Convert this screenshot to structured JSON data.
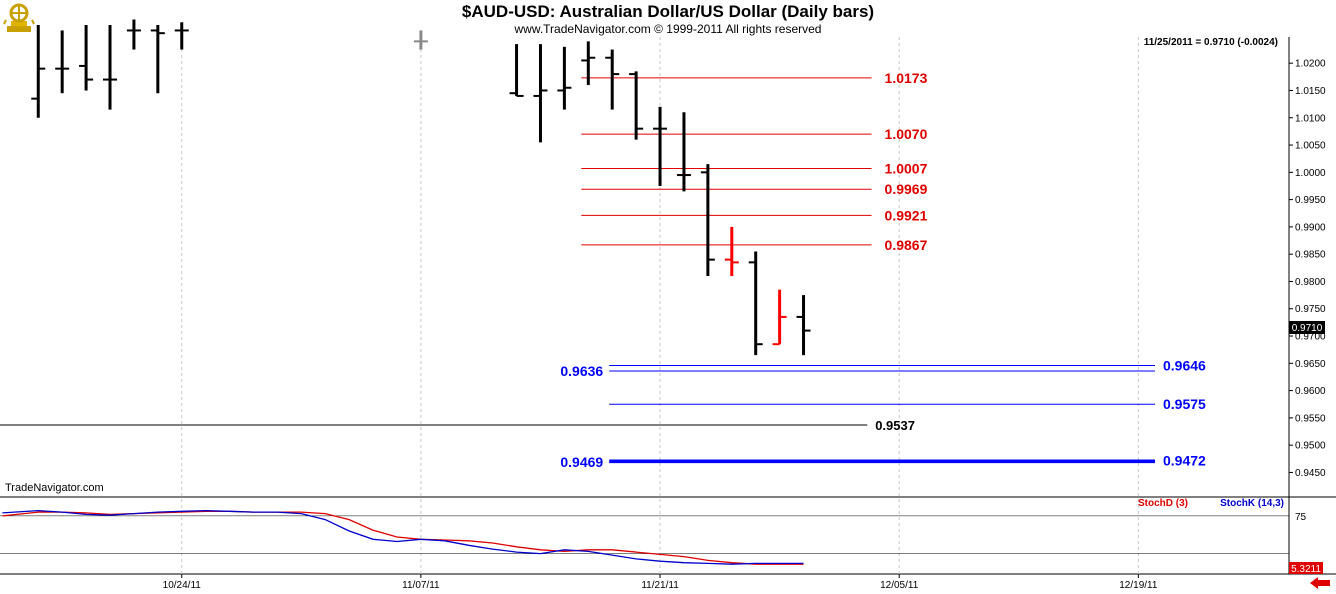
{
  "title": "$AUD-USD:  Australian Dollar/US Dollar  (Daily bars)",
  "subtitle": "www.TradeNavigator.com © 1999-2011 All rights reserved",
  "watermark": "TradeNavigator.com",
  "last_info": "11/25/2011 = 0.9710 (-0.0024)",
  "current_price_label": "0.9710",
  "indicator_value_label": "5.3211",
  "indicator_legend": {
    "stochd": "StochD (3)",
    "stochk": "StochK (14,3)"
  },
  "colors": {
    "up_bar": "#000000",
    "down_bar": "#ff0000",
    "resistance": "#e00000",
    "support": "#0000ff",
    "stochd": "#e00000",
    "stochk": "#0000cc",
    "grid": "#c8c8c8",
    "axis": "#000000"
  },
  "chart_data": {
    "type": "ohlc",
    "price_axis": {
      "ylim": [
        0.9405,
        1.0248
      ],
      "ticks": [
        "1.0200",
        "1.0150",
        "1.0100",
        "1.0050",
        "1.0000",
        "0.9950",
        "0.9900",
        "0.9850",
        "0.9800",
        "0.9750",
        "0.9700",
        "0.9650",
        "0.9600",
        "0.9550",
        "0.9500",
        "0.9450"
      ]
    },
    "x_axis": {
      "day_index_range": [
        -1.6,
        52.3
      ],
      "tick_labels": [
        {
          "index": 6,
          "label": "10/24/11"
        },
        {
          "index": 16,
          "label": "11/07/11"
        },
        {
          "index": 26,
          "label": "11/21/11"
        },
        {
          "index": 36,
          "label": "12/05/11"
        },
        {
          "index": 46,
          "label": "12/19/11"
        }
      ]
    },
    "bars": [
      {
        "i": 0,
        "o": 1.0135,
        "h": 1.027,
        "l": 1.01,
        "c": 1.019,
        "color": "black"
      },
      {
        "i": 1,
        "o": 1.019,
        "h": 1.026,
        "l": 1.0145,
        "c": 1.019,
        "color": "black"
      },
      {
        "i": 2,
        "o": 1.0195,
        "h": 1.027,
        "l": 1.015,
        "c": 1.017,
        "color": "black"
      },
      {
        "i": 3,
        "o": 1.017,
        "h": 1.027,
        "l": 1.0115,
        "c": 1.017,
        "color": "black"
      },
      {
        "i": 4,
        "o": 1.026,
        "h": 1.028,
        "l": 1.0225,
        "c": 1.026,
        "color": "black"
      },
      {
        "i": 5,
        "o": 1.026,
        "h": 1.027,
        "l": 1.0145,
        "c": 1.0255,
        "color": "black"
      },
      {
        "i": 6,
        "o": 1.026,
        "h": 1.0275,
        "l": 1.0225,
        "c": 1.026,
        "color": "black"
      },
      {
        "i": 16,
        "o": 1.024,
        "h": 1.026,
        "l": 1.0225,
        "c": 1.024,
        "color": "gray"
      },
      {
        "i": 20,
        "o": 1.0145,
        "h": 1.0235,
        "l": 1.014,
        "c": 1.014,
        "color": "black"
      },
      {
        "i": 21,
        "o": 1.014,
        "h": 1.0235,
        "l": 1.0055,
        "c": 1.015,
        "color": "black"
      },
      {
        "i": 22,
        "o": 1.015,
        "h": 1.023,
        "l": 1.0115,
        "c": 1.0155,
        "color": "black"
      },
      {
        "i": 23,
        "o": 1.0205,
        "h": 1.024,
        "l": 1.016,
        "c": 1.021,
        "color": "black"
      },
      {
        "i": 24,
        "o": 1.021,
        "h": 1.0225,
        "l": 1.0115,
        "c": 1.018,
        "color": "black"
      },
      {
        "i": 25,
        "o": 1.018,
        "h": 1.0185,
        "l": 1.006,
        "c": 1.008,
        "color": "black"
      },
      {
        "i": 26,
        "o": 1.008,
        "h": 1.012,
        "l": 0.9975,
        "c": 1.008,
        "color": "black"
      },
      {
        "i": 27,
        "o": 0.9995,
        "h": 1.011,
        "l": 0.9965,
        "c": 0.9995,
        "color": "black"
      },
      {
        "i": 28,
        "o": 1.0,
        "h": 1.0015,
        "l": 0.981,
        "c": 0.984,
        "color": "black"
      },
      {
        "i": 29,
        "o": 0.984,
        "h": 0.99,
        "l": 0.981,
        "c": 0.9835,
        "color": "red"
      },
      {
        "i": 30,
        "o": 0.9835,
        "h": 0.9855,
        "l": 0.9665,
        "c": 0.9685,
        "color": "black"
      },
      {
        "i": 31,
        "o": 0.9685,
        "h": 0.9785,
        "l": 0.9685,
        "c": 0.9735,
        "color": "red"
      },
      {
        "i": 32,
        "o": 0.9735,
        "h": 0.9775,
        "l": 0.9665,
        "c": 0.971,
        "color": "black"
      }
    ],
    "resistance_levels": [
      {
        "value": 1.0173,
        "label": "1.0173"
      },
      {
        "value": 1.007,
        "label": "1.0070"
      },
      {
        "value": 1.0007,
        "label": "1.0007"
      },
      {
        "value": 0.9969,
        "label": "0.9969"
      },
      {
        "value": 0.9921,
        "label": "0.9921"
      },
      {
        "value": 0.9867,
        "label": "0.9867"
      }
    ],
    "support_levels": [
      {
        "value": 0.9646,
        "label": "0.9646",
        "side": "right",
        "weight": "thin"
      },
      {
        "value": 0.9636,
        "label": "0.9636",
        "side": "left",
        "weight": "thin"
      },
      {
        "value": 0.9575,
        "label": "0.9575",
        "side": "right",
        "weight": "thin"
      },
      {
        "value": 0.9472,
        "label": "0.9472",
        "side": "right",
        "weight": "thick"
      },
      {
        "value": 0.9469,
        "label": "0.9469",
        "side": "left",
        "weight": "thick"
      }
    ],
    "neutral_level": {
      "value": 0.9537,
      "label": "0.9537"
    },
    "indicator": {
      "name": "Stochastic",
      "ylim": [
        -2,
        100
      ],
      "reference_lines": [
        75,
        25
      ],
      "tick_labels": [
        "75"
      ],
      "stochd": [
        {
          "i": -1.5,
          "v": 75
        },
        {
          "i": 0,
          "v": 80
        },
        {
          "i": 1,
          "v": 80
        },
        {
          "i": 2,
          "v": 79
        },
        {
          "i": 3,
          "v": 77
        },
        {
          "i": 4,
          "v": 78
        },
        {
          "i": 5,
          "v": 79
        },
        {
          "i": 6,
          "v": 80
        },
        {
          "i": 7,
          "v": 81
        },
        {
          "i": 8,
          "v": 81
        },
        {
          "i": 9,
          "v": 80
        },
        {
          "i": 10,
          "v": 80
        },
        {
          "i": 11,
          "v": 80
        },
        {
          "i": 12,
          "v": 78
        },
        {
          "i": 13,
          "v": 70
        },
        {
          "i": 14,
          "v": 56
        },
        {
          "i": 15,
          "v": 47
        },
        {
          "i": 16,
          "v": 44
        },
        {
          "i": 17,
          "v": 43
        },
        {
          "i": 18,
          "v": 42
        },
        {
          "i": 19,
          "v": 39
        },
        {
          "i": 20,
          "v": 34
        },
        {
          "i": 21,
          "v": 30
        },
        {
          "i": 22,
          "v": 28
        },
        {
          "i": 23,
          "v": 30
        },
        {
          "i": 24,
          "v": 30
        },
        {
          "i": 25,
          "v": 27
        },
        {
          "i": 26,
          "v": 24
        },
        {
          "i": 27,
          "v": 21
        },
        {
          "i": 28,
          "v": 16
        },
        {
          "i": 29,
          "v": 13
        },
        {
          "i": 30,
          "v": 11
        },
        {
          "i": 31,
          "v": 11
        },
        {
          "i": 32,
          "v": 11
        }
      ],
      "stochk": [
        {
          "i": -1.5,
          "v": 79
        },
        {
          "i": 0,
          "v": 82
        },
        {
          "i": 1,
          "v": 80
        },
        {
          "i": 2,
          "v": 77
        },
        {
          "i": 3,
          "v": 76
        },
        {
          "i": 4,
          "v": 78
        },
        {
          "i": 5,
          "v": 80
        },
        {
          "i": 6,
          "v": 81
        },
        {
          "i": 7,
          "v": 82
        },
        {
          "i": 8,
          "v": 81
        },
        {
          "i": 9,
          "v": 80
        },
        {
          "i": 10,
          "v": 80
        },
        {
          "i": 11,
          "v": 78
        },
        {
          "i": 12,
          "v": 70
        },
        {
          "i": 13,
          "v": 55
        },
        {
          "i": 14,
          "v": 44
        },
        {
          "i": 15,
          "v": 41
        },
        {
          "i": 16,
          "v": 44
        },
        {
          "i": 17,
          "v": 42
        },
        {
          "i": 18,
          "v": 36
        },
        {
          "i": 19,
          "v": 31
        },
        {
          "i": 20,
          "v": 27
        },
        {
          "i": 21,
          "v": 25
        },
        {
          "i": 22,
          "v": 30
        },
        {
          "i": 23,
          "v": 28
        },
        {
          "i": 24,
          "v": 23
        },
        {
          "i": 25,
          "v": 18
        },
        {
          "i": 26,
          "v": 15
        },
        {
          "i": 27,
          "v": 13
        },
        {
          "i": 28,
          "v": 12
        },
        {
          "i": 29,
          "v": 11
        },
        {
          "i": 30,
          "v": 12
        },
        {
          "i": 31,
          "v": 12
        },
        {
          "i": 32,
          "v": 12
        }
      ]
    }
  }
}
